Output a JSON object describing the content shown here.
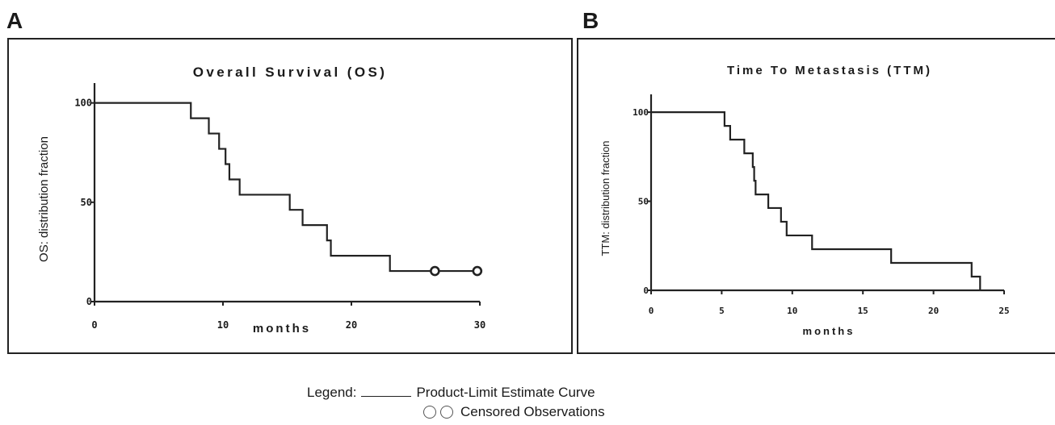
{
  "panels": [
    {
      "letter": "A"
    },
    {
      "letter": "B"
    }
  ],
  "legend": {
    "label": "Legend:",
    "curve_text": "Product-Limit Estimate Curve",
    "censored_text": "Censored Observations"
  },
  "colors": {
    "line": "#222222",
    "text": "#1a1a1a",
    "background": "#ffffff"
  },
  "chart_data": [
    {
      "type": "line",
      "title": "Overall Survival (OS)",
      "xlabel": "months",
      "ylabel": "OS: distribution fraction",
      "xlim": [
        0,
        30
      ],
      "ylim": [
        0,
        110
      ],
      "xticks": [
        0,
        10,
        20,
        30
      ],
      "yticks": [
        0,
        50,
        100
      ],
      "grid": false,
      "series": [
        {
          "steps": [
            [
              0,
              100
            ],
            [
              7.5,
              92.3
            ],
            [
              8.9,
              84.6
            ],
            [
              9.7,
              76.9
            ],
            [
              10.2,
              69.2
            ],
            [
              10.5,
              61.5
            ],
            [
              11.3,
              53.8
            ],
            [
              15.2,
              46.2
            ],
            [
              16.2,
              38.5
            ],
            [
              18.1,
              30.8
            ],
            [
              18.4,
              23.1
            ],
            [
              23.0,
              15.4
            ],
            [
              30,
              15.4
            ]
          ],
          "censored": [
            [
              26.5,
              15.4
            ],
            [
              29.8,
              15.4
            ]
          ]
        }
      ]
    },
    {
      "type": "line",
      "title": "Time To Metastasis (TTM)",
      "xlabel": "months",
      "ylabel": "TTM: distribution fraction",
      "xlim": [
        0,
        25
      ],
      "ylim": [
        0,
        110
      ],
      "xticks": [
        0,
        5,
        10,
        15,
        20,
        25
      ],
      "yticks": [
        0,
        50,
        100
      ],
      "grid": false,
      "series": [
        {
          "steps": [
            [
              0,
              100
            ],
            [
              5.2,
              92.3
            ],
            [
              5.6,
              84.6
            ],
            [
              6.6,
              76.9
            ],
            [
              7.2,
              69.2
            ],
            [
              7.3,
              61.5
            ],
            [
              7.4,
              53.8
            ],
            [
              8.3,
              46.2
            ],
            [
              9.2,
              38.5
            ],
            [
              9.6,
              30.8
            ],
            [
              11.4,
              23.1
            ],
            [
              17.0,
              15.4
            ],
            [
              22.7,
              7.7
            ],
            [
              23.3,
              0
            ]
          ],
          "censored": []
        }
      ]
    }
  ]
}
